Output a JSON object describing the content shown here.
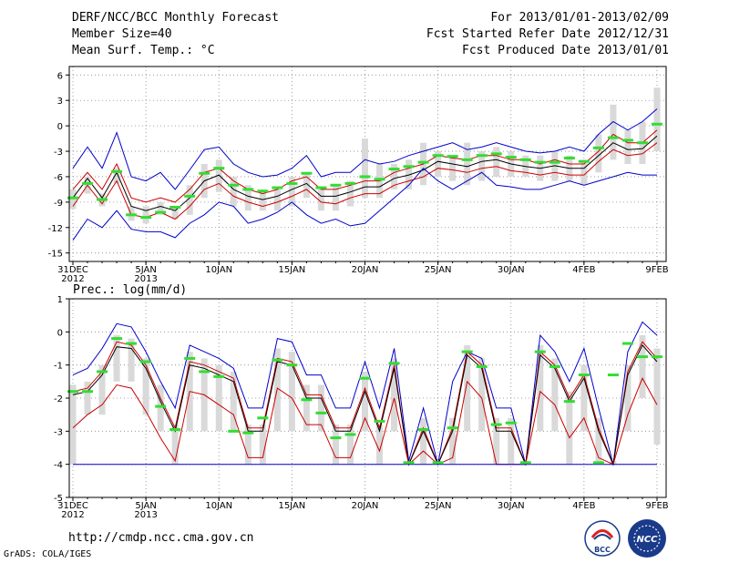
{
  "header": {
    "title": "DERF/NCC/BCC Monthly Forecast",
    "member_size": "Member Size=40",
    "variable_top": "Mean Surf. Temp.: °C",
    "for_period": "For 2013/01/01-2013/02/09",
    "started": "Fcst Started Refer Date 2012/12/31",
    "produced": "Fcst Produced Date 2013/01/01"
  },
  "footer": {
    "url": "http://cmdp.ncc.cma.gov.cn",
    "credit": "GrADS: COLA/IGES",
    "logo_left_text": "BCC",
    "logo_right_text": "NCC"
  },
  "colors": {
    "max_min": "#0000cc",
    "spread": "#cc0000",
    "mean": "#000000",
    "box": "#d9d9d9",
    "marker": "#33dd33"
  },
  "chart_data": [
    {
      "type": "line",
      "title": "Mean Surf. Temp.: °C",
      "ylabel": "°C",
      "ylim": [
        -16,
        7
      ],
      "yticks": [
        6,
        3,
        0,
        -3,
        -6,
        -9,
        -12,
        -15
      ],
      "xlim": [
        0,
        40
      ],
      "xticks": [
        {
          "x": 0,
          "label": "31DEC",
          "sub": "2012"
        },
        {
          "x": 5,
          "label": "5JAN",
          "sub": "2013"
        },
        {
          "x": 10,
          "label": "10JAN",
          "sub": ""
        },
        {
          "x": 15,
          "label": "15JAN",
          "sub": ""
        },
        {
          "x": 20,
          "label": "20JAN",
          "sub": ""
        },
        {
          "x": 25,
          "label": "25JAN",
          "sub": ""
        },
        {
          "x": 30,
          "label": "30JAN",
          "sub": ""
        },
        {
          "x": 35,
          "label": "4FEB",
          "sub": ""
        },
        {
          "x": 40,
          "label": "9FEB",
          "sub": ""
        }
      ],
      "series": [
        {
          "name": "max",
          "color": "#0000cc",
          "values": [
            -5.0,
            -2.5,
            -5.0,
            -0.8,
            -6.0,
            -6.5,
            -5.5,
            -7.5,
            -5.2,
            -2.8,
            -2.5,
            -4.5,
            -5.5,
            -6.0,
            -5.8,
            -5.0,
            -3.5,
            -6.0,
            -5.5,
            -5.5,
            -4.0,
            -4.5,
            -4.2,
            -3.5,
            -3.0,
            -2.5,
            -2.0,
            -2.8,
            -2.5,
            -2.0,
            -2.5,
            -3.0,
            -3.2,
            -3.0,
            -2.5,
            -3.0,
            -1.0,
            0.5,
            -0.5,
            0.5,
            2.0
          ]
        },
        {
          "name": "upper",
          "color": "#cc0000",
          "values": [
            -7.5,
            -5.5,
            -7.5,
            -4.5,
            -8.5,
            -9.0,
            -8.5,
            -9.0,
            -7.5,
            -5.5,
            -5.0,
            -6.5,
            -7.5,
            -8.0,
            -7.5,
            -6.5,
            -6.0,
            -7.5,
            -7.5,
            -7.0,
            -6.5,
            -6.5,
            -5.5,
            -5.0,
            -4.5,
            -3.5,
            -3.8,
            -4.0,
            -3.5,
            -3.5,
            -4.0,
            -4.0,
            -4.5,
            -4.0,
            -4.5,
            -4.5,
            -3.0,
            -1.0,
            -2.0,
            -2.0,
            -0.5
          ]
        },
        {
          "name": "mean",
          "color": "#000000",
          "values": [
            -8.5,
            -6.2,
            -8.5,
            -5.5,
            -9.5,
            -10.0,
            -9.5,
            -10.0,
            -8.5,
            -6.5,
            -5.8,
            -7.5,
            -8.3,
            -8.7,
            -8.3,
            -7.5,
            -6.8,
            -8.3,
            -8.3,
            -7.8,
            -7.2,
            -7.2,
            -6.2,
            -5.8,
            -5.2,
            -4.2,
            -4.5,
            -4.8,
            -4.2,
            -4.0,
            -4.5,
            -4.8,
            -5.0,
            -4.7,
            -5.0,
            -5.0,
            -3.5,
            -2.0,
            -2.8,
            -2.7,
            -1.2
          ]
        },
        {
          "name": "lower",
          "color": "#cc0000",
          "values": [
            -9.5,
            -7.0,
            -9.2,
            -6.5,
            -10.5,
            -10.8,
            -10.2,
            -11.0,
            -9.5,
            -7.5,
            -6.8,
            -8.3,
            -9.0,
            -9.5,
            -9.0,
            -8.3,
            -7.5,
            -9.0,
            -9.2,
            -8.5,
            -8.0,
            -8.0,
            -7.0,
            -6.5,
            -6.0,
            -5.0,
            -5.2,
            -5.5,
            -5.0,
            -4.8,
            -5.3,
            -5.5,
            -5.8,
            -5.5,
            -5.8,
            -5.8,
            -4.2,
            -2.8,
            -3.5,
            -3.3,
            -2.0
          ]
        },
        {
          "name": "min",
          "color": "#0000cc",
          "values": [
            -13.5,
            -11.0,
            -12.0,
            -10.0,
            -12.2,
            -12.5,
            -12.5,
            -13.2,
            -11.5,
            -10.5,
            -9.0,
            -9.5,
            -11.5,
            -11.0,
            -10.2,
            -9.0,
            -10.5,
            -11.5,
            -11.0,
            -11.8,
            -11.5,
            -10.0,
            -8.5,
            -7.0,
            -5.0,
            -6.5,
            -7.5,
            -6.5,
            -5.5,
            -7.0,
            -7.2,
            -7.5,
            -7.5,
            -7.0,
            -6.5,
            -7.0,
            -6.5,
            -6.0,
            -5.5,
            -5.8,
            -5.8
          ]
        }
      ],
      "boxes_low": [
        -9.8,
        -8.0,
        -9.5,
        -6.8,
        -11.2,
        -11.5,
        -10.5,
        -11.0,
        -10.5,
        -8.5,
        -7.8,
        -9.5,
        -10.0,
        -10.0,
        -10.0,
        -9.5,
        -8.5,
        -10.0,
        -10.0,
        -9.5,
        -8.5,
        -8.5,
        -7.5,
        -7.5,
        -7.0,
        -6.0,
        -6.5,
        -7.0,
        -6.5,
        -6.0,
        -6.0,
        -6.0,
        -6.5,
        -6.5,
        -6.5,
        -7.0,
        -5.5,
        -4.0,
        -4.5,
        -4.5,
        -3.0
      ],
      "boxes_high": [
        -7.5,
        -6.0,
        -8.0,
        -5.0,
        -9.5,
        -9.5,
        -9.0,
        -9.5,
        -7.0,
        -4.5,
        -4.0,
        -6.0,
        -7.0,
        -7.5,
        -7.5,
        -6.0,
        -5.5,
        -7.5,
        -7.0,
        -6.5,
        -1.5,
        -4.5,
        -4.5,
        -4.0,
        -2.0,
        -3.0,
        -3.5,
        -2.0,
        -3.0,
        -2.5,
        -3.0,
        -3.5,
        -3.5,
        -3.0,
        -3.5,
        -4.0,
        -1.0,
        2.5,
        -0.5,
        0.5,
        4.5
      ],
      "markers": [
        -8.5,
        -6.8,
        -8.7,
        -5.4,
        -10.5,
        -10.8,
        -10.2,
        -9.6,
        -8.3,
        -5.6,
        -5.0,
        -7.0,
        -7.5,
        -7.7,
        -7.3,
        -6.8,
        -5.6,
        -7.3,
        -7.0,
        -6.8,
        -6.0,
        -6.3,
        -5.1,
        -4.8,
        -4.3,
        -3.5,
        -3.6,
        -4.0,
        -3.5,
        -3.3,
        -3.7,
        -4.0,
        -4.3,
        -4.3,
        -3.8,
        -4.2,
        -2.6,
        -1.4,
        -1.7,
        -2.0,
        0.2
      ]
    },
    {
      "type": "line",
      "title": "Prec.: log(mm/d)",
      "ylabel": "log(mm/d)",
      "ylim": [
        -5,
        1
      ],
      "yticks": [
        1,
        0,
        -1,
        -2,
        -3,
        -4,
        -5
      ],
      "xlim": [
        0,
        40
      ],
      "xticks": [
        {
          "x": 0,
          "label": "31DEC",
          "sub": "2012"
        },
        {
          "x": 5,
          "label": "5JAN",
          "sub": "2013"
        },
        {
          "x": 10,
          "label": "10JAN",
          "sub": ""
        },
        {
          "x": 15,
          "label": "15JAN",
          "sub": ""
        },
        {
          "x": 20,
          "label": "20JAN",
          "sub": ""
        },
        {
          "x": 25,
          "label": "25JAN",
          "sub": ""
        },
        {
          "x": 30,
          "label": "30JAN",
          "sub": ""
        },
        {
          "x": 35,
          "label": "4FEB",
          "sub": ""
        },
        {
          "x": 40,
          "label": "9FEB",
          "sub": ""
        }
      ],
      "series": [
        {
          "name": "max",
          "color": "#0000cc",
          "values": [
            -1.3,
            -1.1,
            -0.5,
            0.25,
            0.15,
            -0.6,
            -1.5,
            -2.3,
            -0.4,
            -0.6,
            -0.8,
            -1.1,
            -2.3,
            -2.3,
            -0.2,
            -0.3,
            -1.3,
            -1.3,
            -2.3,
            -2.3,
            -0.9,
            -2.3,
            -0.5,
            -3.9,
            -2.3,
            -4.0,
            -1.5,
            -0.6,
            -0.8,
            -2.3,
            -2.3,
            -4.0,
            -0.1,
            -0.6,
            -1.5,
            -0.5,
            -2.3,
            -4.0,
            -0.6,
            0.3,
            -0.1
          ]
        },
        {
          "name": "upper",
          "color": "#cc0000",
          "values": [
            -1.8,
            -1.7,
            -1.2,
            -0.3,
            -0.4,
            -1.0,
            -2.0,
            -2.9,
            -0.9,
            -1.0,
            -1.2,
            -1.4,
            -2.9,
            -2.9,
            -0.8,
            -0.9,
            -1.9,
            -1.9,
            -2.9,
            -2.9,
            -1.7,
            -2.9,
            -1.0,
            -4.0,
            -2.9,
            -4.0,
            -2.9,
            -0.6,
            -1.0,
            -2.9,
            -2.9,
            -4.0,
            -0.6,
            -1.0,
            -2.0,
            -1.3,
            -2.9,
            -4.0,
            -1.2,
            -0.3,
            -0.8
          ]
        },
        {
          "name": "mean",
          "color": "#000000",
          "values": [
            -1.9,
            -1.8,
            -1.3,
            -0.45,
            -0.5,
            -1.1,
            -2.1,
            -3.0,
            -1.0,
            -1.1,
            -1.3,
            -1.5,
            -3.0,
            -3.0,
            -0.9,
            -1.0,
            -2.0,
            -2.0,
            -3.0,
            -3.0,
            -1.8,
            -3.0,
            -1.1,
            -4.0,
            -3.0,
            -4.0,
            -3.0,
            -0.7,
            -1.1,
            -3.0,
            -3.0,
            -4.0,
            -0.7,
            -1.1,
            -2.1,
            -1.4,
            -3.0,
            -4.0,
            -1.3,
            -0.4,
            -0.9
          ]
        },
        {
          "name": "lower",
          "color": "#cc0000",
          "values": [
            -2.9,
            -2.5,
            -2.2,
            -1.6,
            -1.7,
            -2.4,
            -3.2,
            -3.9,
            -1.8,
            -1.9,
            -2.2,
            -2.5,
            -3.8,
            -3.8,
            -1.7,
            -2.0,
            -2.8,
            -2.8,
            -3.8,
            -3.8,
            -2.6,
            -3.6,
            -2.0,
            -4.0,
            -3.6,
            -4.0,
            -3.8,
            -1.5,
            -2.0,
            -4.0,
            -4.0,
            -4.0,
            -1.8,
            -2.2,
            -3.2,
            -2.6,
            -3.8,
            -4.0,
            -2.5,
            -1.4,
            -2.2
          ]
        },
        {
          "name": "min",
          "color": "#0000cc",
          "values": [
            -4.0,
            -4.0,
            -4.0,
            -4.0,
            -4.0,
            -4.0,
            -4.0,
            -4.0,
            -4.0,
            -4.0,
            -4.0,
            -4.0,
            -4.0,
            -4.0,
            -4.0,
            -4.0,
            -4.0,
            -4.0,
            -4.0,
            -4.0,
            -4.0,
            -4.0,
            -4.0,
            -4.0,
            -4.0,
            -4.0,
            -4.0,
            -4.0,
            -4.0,
            -4.0,
            -4.0,
            -4.0,
            -4.0,
            -4.0,
            -4.0,
            -4.0,
            -4.0,
            -4.0,
            -4.0,
            -4.0,
            -4.0
          ]
        }
      ],
      "boxes_low": [
        -4.0,
        -2.5,
        -2.5,
        -1.5,
        -1.5,
        -2.5,
        -3.0,
        -4.0,
        -3.0,
        -3.0,
        -3.0,
        -3.0,
        -4.0,
        -4.0,
        -3.0,
        -3.0,
        -3.0,
        -3.0,
        -4.0,
        -4.0,
        -3.0,
        -4.0,
        -3.0,
        -4.0,
        -4.0,
        -4.0,
        -4.0,
        -3.0,
        -3.0,
        -4.0,
        -4.0,
        -4.0,
        -3.0,
        -3.0,
        -4.0,
        -3.0,
        -4.0,
        -4.0,
        -3.0,
        -2.0,
        -3.4
      ],
      "boxes_high": [
        -1.6,
        -1.5,
        -1.0,
        -0.1,
        -0.2,
        -0.8,
        -1.6,
        -2.8,
        -0.6,
        -0.8,
        -1.0,
        -1.2,
        -2.8,
        -2.8,
        -0.5,
        -0.6,
        -1.6,
        -1.6,
        -2.8,
        -2.8,
        -1.2,
        -2.8,
        -0.8,
        -3.9,
        -2.6,
        -3.9,
        -2.6,
        -0.4,
        -0.8,
        -2.6,
        -2.6,
        -3.9,
        -0.4,
        -0.8,
        -1.8,
        -1.0,
        -2.6,
        -3.9,
        -1.0,
        -0.1,
        -0.5
      ],
      "markers": [
        -1.8,
        -1.8,
        -1.2,
        -0.2,
        -0.35,
        -0.9,
        -2.25,
        -2.95,
        -0.8,
        -1.2,
        -1.35,
        -3.0,
        -3.05,
        -2.6,
        -0.85,
        -1.0,
        -2.05,
        -2.45,
        -3.2,
        -3.1,
        -1.4,
        -2.7,
        -0.95,
        -3.95,
        -2.95,
        -3.95,
        -2.9,
        -0.6,
        -1.05,
        -2.8,
        -2.75,
        -3.95,
        -0.6,
        -1.05,
        -2.1,
        -1.3,
        -3.95,
        -1.3,
        -0.35,
        -0.75,
        -0.75
      ]
    }
  ]
}
